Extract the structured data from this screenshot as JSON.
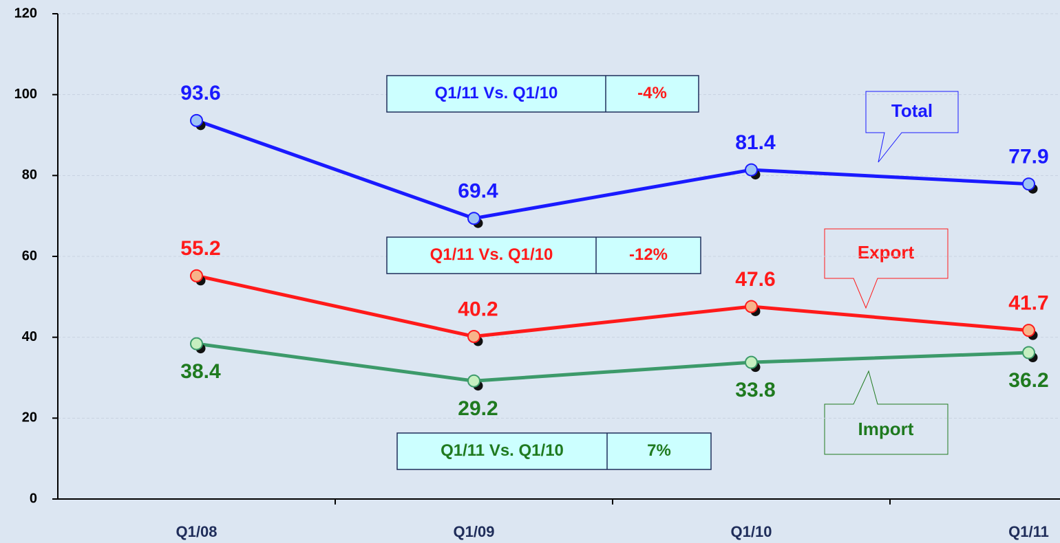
{
  "chart_data": {
    "type": "line",
    "categories": [
      "Q1/08",
      "Q1/09",
      "Q1/10",
      "Q1/11"
    ],
    "series": [
      {
        "name": "Total",
        "color": "#1a1aff",
        "marker_color": "#9ec3f5",
        "label_color": "#1a1aff",
        "label_position": "above",
        "values": [
          93.6,
          69.4,
          81.4,
          77.9
        ]
      },
      {
        "name": "Export",
        "color": "#ff1a1a",
        "marker_color": "#f7b48a",
        "label_color": "#ff1a1a",
        "label_position": "above",
        "values": [
          55.2,
          40.2,
          47.6,
          41.7
        ]
      },
      {
        "name": "Import",
        "color": "#3c9a6a",
        "marker_color": "#c6efc0",
        "label_color": "#1f7a1f",
        "label_position": "below",
        "values": [
          38.4,
          29.2,
          33.8,
          36.2
        ]
      }
    ],
    "ylim": [
      0,
      120
    ],
    "yticks": [
      0,
      20,
      40,
      60,
      80,
      100,
      120
    ],
    "grid": true,
    "comparisons": [
      {
        "label": "Q1/11 Vs. Q1/10",
        "change": "-4%",
        "label_color": "#1a1aff",
        "change_color": "#ff1a1a"
      },
      {
        "label": "Q1/11 Vs. Q1/10",
        "change": "-12%",
        "label_color": "#ff1a1a",
        "change_color": "#ff1a1a"
      },
      {
        "label": "Q1/11 Vs. Q1/10",
        "change": "7%",
        "label_color": "#1f7a1f",
        "change_color": "#1f7a1f"
      }
    ]
  }
}
